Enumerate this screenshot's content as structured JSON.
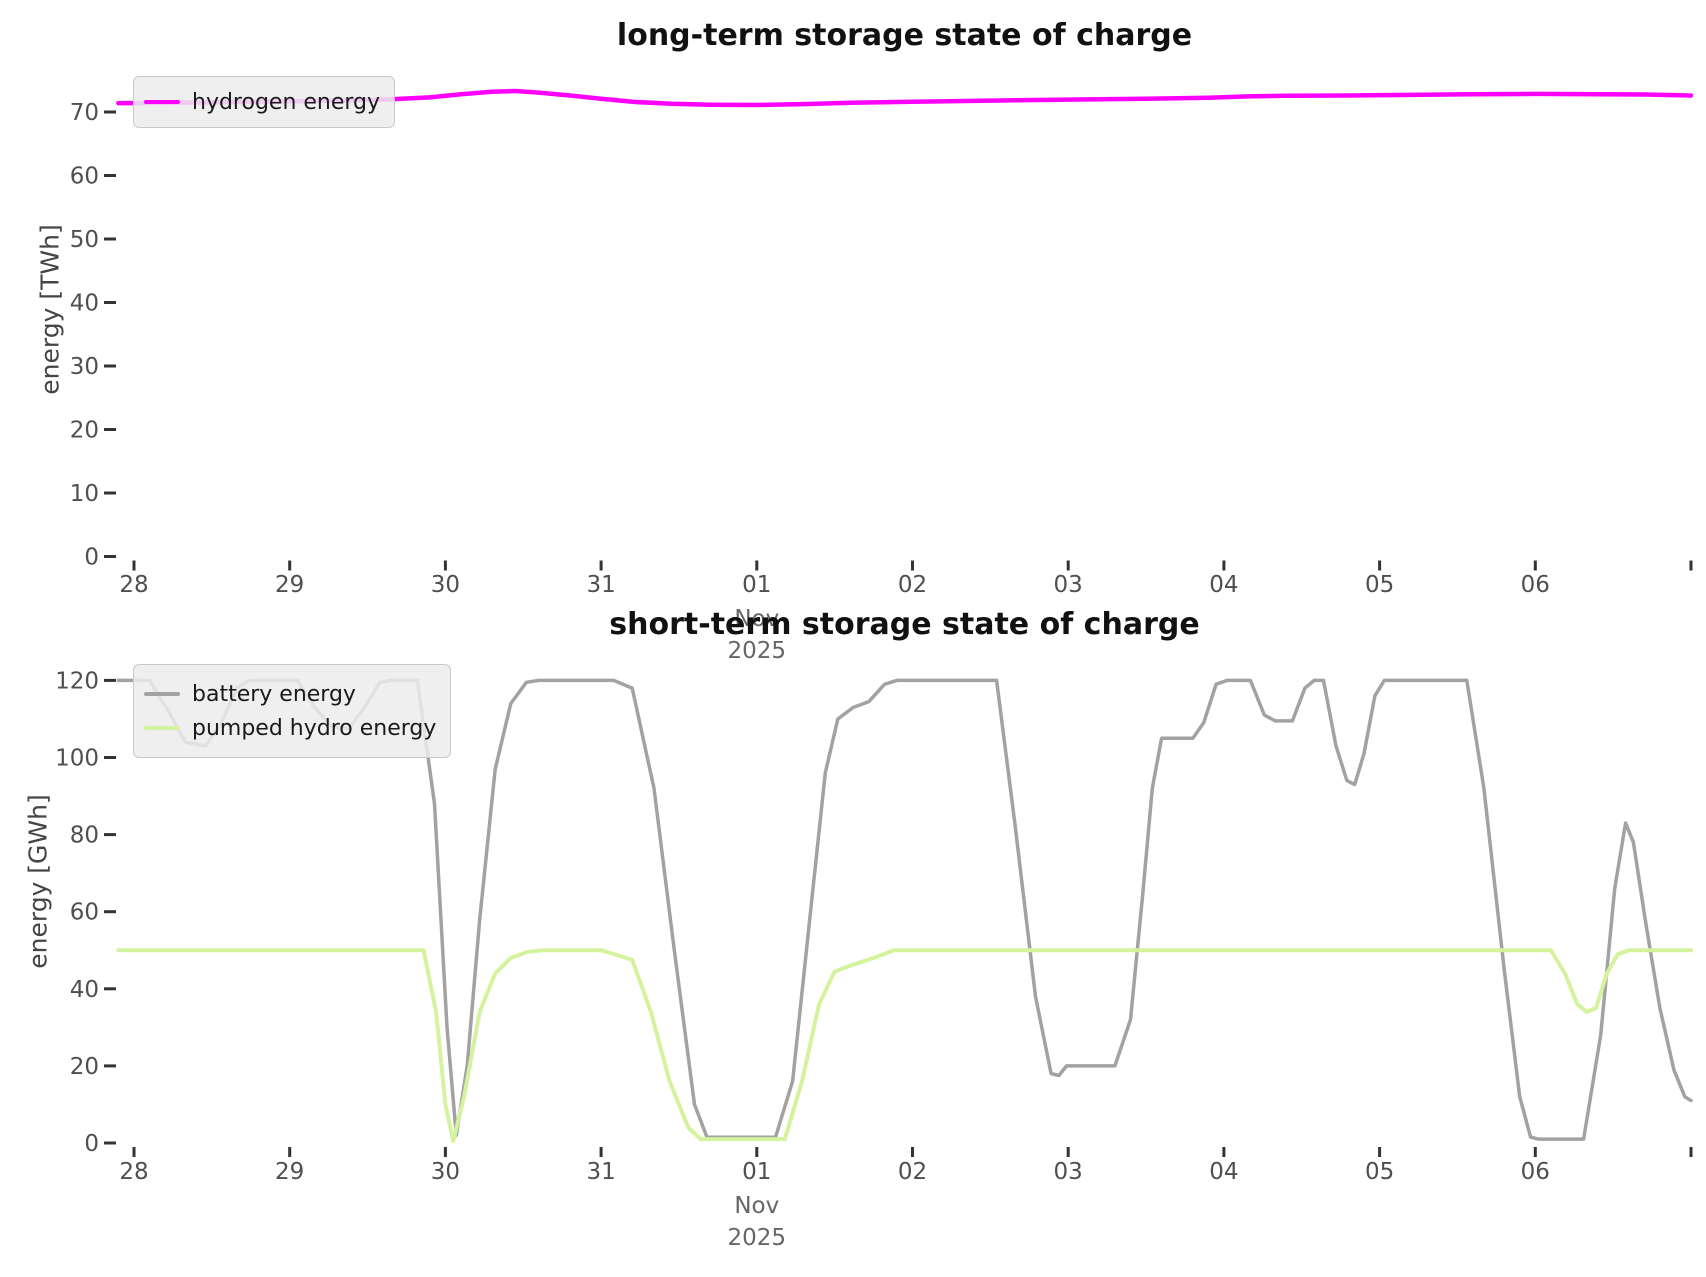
{
  "page": {
    "background": "#ffffff"
  },
  "chart_data": [
    {
      "id": "long_term_storage",
      "type": "line",
      "title": "long-term storage state of charge",
      "xlabel": "",
      "ylabel": "energy [TWh]",
      "x_axis_description": "days from Oct 28 2025 to Nov 07 2025",
      "x_tick_labels": [
        "28",
        "29",
        "30",
        "31",
        "01",
        "02",
        "03",
        "04",
        "05",
        "06",
        ""
      ],
      "month_label": "Nov",
      "year_label": "2025",
      "month_tick_index": 4,
      "y_ticks": [
        0,
        10,
        20,
        30,
        40,
        50,
        60,
        70
      ],
      "ylim": [
        0,
        78
      ],
      "xlim_days": [
        -0.1,
        10.0
      ],
      "grid": false,
      "legend_position": "upper left",
      "legend": [
        {
          "label": "hydrogen energy",
          "color": "#ff00ff"
        }
      ],
      "series": [
        {
          "name": "hydrogen energy",
          "color": "#ff00ff",
          "width": 4.5,
          "unit": "TWh",
          "points": [
            [
              0,
              71.4
            ],
            [
              0.4,
              71.5
            ],
            [
              0.8,
              71.6
            ],
            [
              1.2,
              71.75
            ],
            [
              1.6,
              71.95
            ],
            [
              1.9,
              72.3
            ],
            [
              2.1,
              72.8
            ],
            [
              2.3,
              73.2
            ],
            [
              2.45,
              73.3
            ],
            [
              2.6,
              73.05
            ],
            [
              2.8,
              72.6
            ],
            [
              3.0,
              72.1
            ],
            [
              3.2,
              71.6
            ],
            [
              3.45,
              71.3
            ],
            [
              3.7,
              71.15
            ],
            [
              4.0,
              71.1
            ],
            [
              4.3,
              71.25
            ],
            [
              4.6,
              71.45
            ],
            [
              5.0,
              71.6
            ],
            [
              5.5,
              71.8
            ],
            [
              6.0,
              71.95
            ],
            [
              6.5,
              72.1
            ],
            [
              6.9,
              72.25
            ],
            [
              7.15,
              72.45
            ],
            [
              7.4,
              72.55
            ],
            [
              7.8,
              72.6
            ],
            [
              8.2,
              72.7
            ],
            [
              8.6,
              72.8
            ],
            [
              9.0,
              72.85
            ],
            [
              9.4,
              72.8
            ],
            [
              9.7,
              72.75
            ],
            [
              10.0,
              72.6
            ]
          ]
        }
      ]
    },
    {
      "id": "short_term_storage",
      "type": "line",
      "title": "short-term storage state of charge",
      "xlabel": "",
      "ylabel": "energy [GWh]",
      "x_axis_description": "days from Oct 28 2025 to Nov 07 2025",
      "x_tick_labels": [
        "28",
        "29",
        "30",
        "31",
        "01",
        "02",
        "03",
        "04",
        "05",
        "06",
        ""
      ],
      "month_label": "Nov",
      "year_label": "2025",
      "month_tick_index": 4,
      "y_ticks": [
        0,
        20,
        40,
        60,
        80,
        100,
        120
      ],
      "ylim": [
        0,
        136
      ],
      "xlim_days": [
        -0.1,
        10.0
      ],
      "grid": false,
      "legend_position": "upper left",
      "legend": [
        {
          "label": "battery energy",
          "color": "#a2a2a2"
        },
        {
          "label": "pumped hydro energy",
          "color": "#d4f39e"
        }
      ],
      "series": [
        {
          "name": "battery energy",
          "color": "#a2a2a2",
          "width": 3.5,
          "unit": "GWh",
          "points": [
            [
              0,
              120
            ],
            [
              0.1,
              120
            ],
            [
              0.22,
              112
            ],
            [
              0.33,
              104
            ],
            [
              0.46,
              103
            ],
            [
              0.56,
              109
            ],
            [
              0.66,
              118
            ],
            [
              0.74,
              120
            ],
            [
              1.05,
              120
            ],
            [
              1.16,
              113
            ],
            [
              1.27,
              108
            ],
            [
              1.38,
              107.5
            ],
            [
              1.48,
              113
            ],
            [
              1.58,
              119.5
            ],
            [
              1.65,
              120
            ],
            [
              1.82,
              120
            ],
            [
              1.93,
              88
            ],
            [
              2.01,
              30
            ],
            [
              2.07,
              2
            ],
            [
              2.14,
              20
            ],
            [
              2.22,
              58
            ],
            [
              2.32,
              97
            ],
            [
              2.42,
              114
            ],
            [
              2.52,
              119.5
            ],
            [
              2.6,
              120
            ],
            [
              3.08,
              120
            ],
            [
              3.2,
              118
            ],
            [
              3.34,
              92
            ],
            [
              3.47,
              50
            ],
            [
              3.6,
              10
            ],
            [
              3.68,
              1.5
            ],
            [
              4.12,
              1.5
            ],
            [
              4.23,
              16
            ],
            [
              4.34,
              58
            ],
            [
              4.44,
              96
            ],
            [
              4.52,
              110
            ],
            [
              4.62,
              113
            ],
            [
              4.72,
              114.5
            ],
            [
              4.82,
              119
            ],
            [
              4.9,
              120
            ],
            [
              5.54,
              120
            ],
            [
              5.66,
              82
            ],
            [
              5.79,
              38
            ],
            [
              5.89,
              18
            ],
            [
              5.94,
              17.5
            ],
            [
              5.99,
              20
            ],
            [
              6.3,
              20
            ],
            [
              6.4,
              32
            ],
            [
              6.48,
              65
            ],
            [
              6.54,
              92
            ],
            [
              6.6,
              105
            ],
            [
              6.8,
              105
            ],
            [
              6.87,
              109
            ],
            [
              6.95,
              119
            ],
            [
              7.02,
              120
            ],
            [
              7.17,
              120
            ],
            [
              7.26,
              111
            ],
            [
              7.33,
              109.5
            ],
            [
              7.44,
              109.5
            ],
            [
              7.52,
              118
            ],
            [
              7.58,
              120
            ],
            [
              7.64,
              120
            ],
            [
              7.72,
              103
            ],
            [
              7.79,
              94
            ],
            [
              7.84,
              93
            ],
            [
              7.9,
              101
            ],
            [
              7.97,
              116
            ],
            [
              8.03,
              120
            ],
            [
              8.56,
              120
            ],
            [
              8.67,
              92
            ],
            [
              8.8,
              45
            ],
            [
              8.9,
              12
            ],
            [
              8.97,
              1.5
            ],
            [
              9.02,
              1
            ],
            [
              9.31,
              1
            ],
            [
              9.42,
              28
            ],
            [
              9.51,
              66
            ],
            [
              9.58,
              83
            ],
            [
              9.63,
              78
            ],
            [
              9.71,
              57
            ],
            [
              9.8,
              35
            ],
            [
              9.89,
              19
            ],
            [
              9.96,
              12
            ],
            [
              10.0,
              11
            ]
          ]
        },
        {
          "name": "pumped hydro energy",
          "color": "#d4f39e",
          "width": 4,
          "unit": "GWh",
          "points": [
            [
              0,
              50
            ],
            [
              1.86,
              50
            ],
            [
              1.94,
              34
            ],
            [
              2.0,
              10
            ],
            [
              2.05,
              0.5
            ],
            [
              2.12,
              12
            ],
            [
              2.22,
              34
            ],
            [
              2.32,
              44
            ],
            [
              2.42,
              48
            ],
            [
              2.52,
              49.5
            ],
            [
              2.62,
              50
            ],
            [
              3.0,
              50
            ],
            [
              3.12,
              48.5
            ],
            [
              3.2,
              47.5
            ],
            [
              3.32,
              34
            ],
            [
              3.44,
              16
            ],
            [
              3.56,
              4
            ],
            [
              3.64,
              1
            ],
            [
              4.18,
              1
            ],
            [
              4.29,
              16
            ],
            [
              4.4,
              36
            ],
            [
              4.5,
              44.5
            ],
            [
              4.6,
              46
            ],
            [
              4.75,
              48
            ],
            [
              4.88,
              50
            ],
            [
              9.1,
              50
            ],
            [
              9.19,
              44
            ],
            [
              9.27,
              36
            ],
            [
              9.33,
              34
            ],
            [
              9.39,
              35
            ],
            [
              9.46,
              44
            ],
            [
              9.53,
              49
            ],
            [
              9.6,
              50
            ],
            [
              10.0,
              50
            ]
          ]
        }
      ]
    }
  ],
  "style": {
    "tick_color": "#333333",
    "tick_label_color": "#4f4f4f",
    "date_sub_label_color": "#666666",
    "title_color": "#111111",
    "axis_label_color": "#454545"
  }
}
